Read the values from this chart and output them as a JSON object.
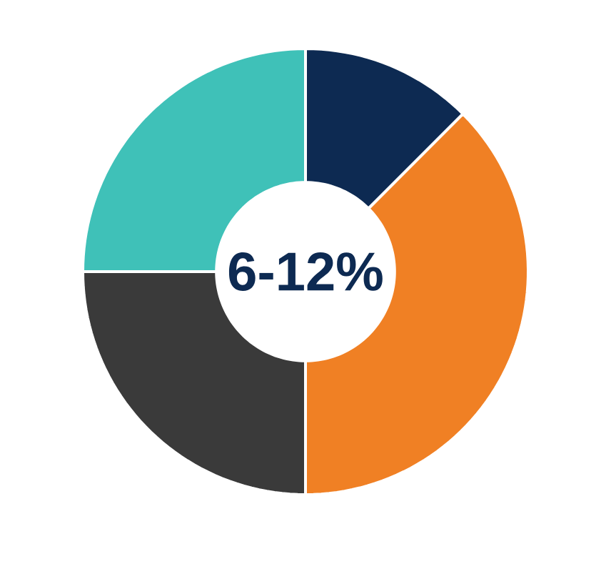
{
  "chart_data": {
    "type": "donut",
    "title": "6-12%",
    "categories": [
      null,
      null,
      null,
      null
    ],
    "values": [
      12.5,
      37.5,
      25,
      25
    ],
    "colors": [
      "#0d2a52",
      "#f08024",
      "#3a3a3a",
      "#3fc1b8"
    ]
  }
}
